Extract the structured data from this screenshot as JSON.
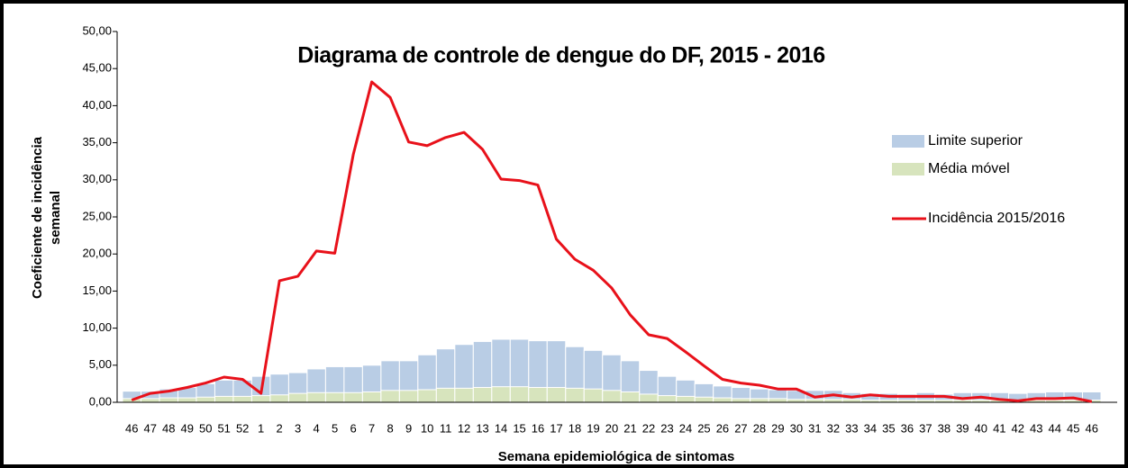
{
  "chart_data": {
    "type": "bar-line",
    "title": "Diagrama de controle de dengue do DF, 2015 - 2016",
    "xlabel": "Semana epidemiológica  de sintomas",
    "ylabel": [
      "Coeficiente de incidência",
      "semanal"
    ],
    "categories": [
      "46",
      "47",
      "48",
      "49",
      "50",
      "51",
      "52",
      "1",
      "2",
      "3",
      "4",
      "5",
      "6",
      "7",
      "8",
      "9",
      "10",
      "11",
      "12",
      "13",
      "14",
      "15",
      "16",
      "17",
      "18",
      "19",
      "20",
      "21",
      "22",
      "23",
      "24",
      "25",
      "26",
      "27",
      "28",
      "29",
      "30",
      "31",
      "32",
      "33",
      "34",
      "35",
      "36",
      "37",
      "38",
      "39",
      "40",
      "41",
      "42",
      "43",
      "44",
      "45",
      "46"
    ],
    "ylim": [
      0,
      50
    ],
    "yticks": [
      {
        "value": 0,
        "label": "0,00"
      },
      {
        "value": 5,
        "label": "5,00"
      },
      {
        "value": 10,
        "label": "10,00"
      },
      {
        "value": 15,
        "label": "15,00"
      },
      {
        "value": 20,
        "label": "20,00"
      },
      {
        "value": 25,
        "label": "25,00"
      },
      {
        "value": 30,
        "label": "30,00"
      },
      {
        "value": 35,
        "label": "35,00"
      },
      {
        "value": 40,
        "label": "40,00"
      },
      {
        "value": 45,
        "label": "45,00"
      },
      {
        "value": 50,
        "label": "50,00"
      }
    ],
    "series": [
      {
        "name": "Limite superior",
        "kind": "bar",
        "color": "#b9cde5",
        "values": [
          1.5,
          1.5,
          1.8,
          2.0,
          2.5,
          3.0,
          3.0,
          3.5,
          3.8,
          4.0,
          4.5,
          4.8,
          4.8,
          5.0,
          5.6,
          5.6,
          6.4,
          7.2,
          7.8,
          8.2,
          8.5,
          8.5,
          8.3,
          8.3,
          7.5,
          7.0,
          6.4,
          5.6,
          4.3,
          3.5,
          3.0,
          2.5,
          2.2,
          2.0,
          1.8,
          1.7,
          1.6,
          1.6,
          1.6,
          1.3,
          1.2,
          1.2,
          1.1,
          1.3,
          1.1,
          1.3,
          1.3,
          1.3,
          1.2,
          1.3,
          1.4,
          1.4,
          1.4
        ]
      },
      {
        "name": "Média móvel",
        "kind": "bar",
        "color": "#d7e4bd",
        "values": [
          0.5,
          0.5,
          0.6,
          0.6,
          0.7,
          0.8,
          0.8,
          0.9,
          1.0,
          1.2,
          1.3,
          1.3,
          1.3,
          1.4,
          1.6,
          1.6,
          1.7,
          1.9,
          1.9,
          2.0,
          2.1,
          2.1,
          2.0,
          2.0,
          1.9,
          1.8,
          1.6,
          1.4,
          1.1,
          0.9,
          0.8,
          0.7,
          0.6,
          0.5,
          0.5,
          0.5,
          0.4,
          0.4,
          0.4,
          0.4,
          0.3,
          0.3,
          0.3,
          0.3,
          0.3,
          0.3,
          0.3,
          0.3,
          0.3,
          0.3,
          0.3,
          0.3,
          0.3
        ]
      },
      {
        "name": "Incidência 2015/2016",
        "kind": "line",
        "color": "#e8111a",
        "values": [
          0.3,
          1.2,
          1.5,
          2.0,
          2.6,
          3.4,
          3.1,
          1.2,
          16.4,
          17.0,
          20.4,
          20.1,
          33.4,
          43.2,
          41.1,
          35.1,
          34.6,
          35.7,
          36.4,
          34.1,
          30.1,
          29.9,
          29.3,
          22.0,
          19.3,
          17.8,
          15.4,
          11.8,
          9.1,
          8.6,
          6.8,
          4.9,
          3.1,
          2.6,
          2.3,
          1.8,
          1.8,
          0.7,
          1.0,
          0.7,
          1.0,
          0.8,
          0.8,
          0.8,
          0.8,
          0.5,
          0.7,
          0.4,
          0.2,
          0.5,
          0.5,
          0.6,
          0.1
        ]
      }
    ]
  }
}
